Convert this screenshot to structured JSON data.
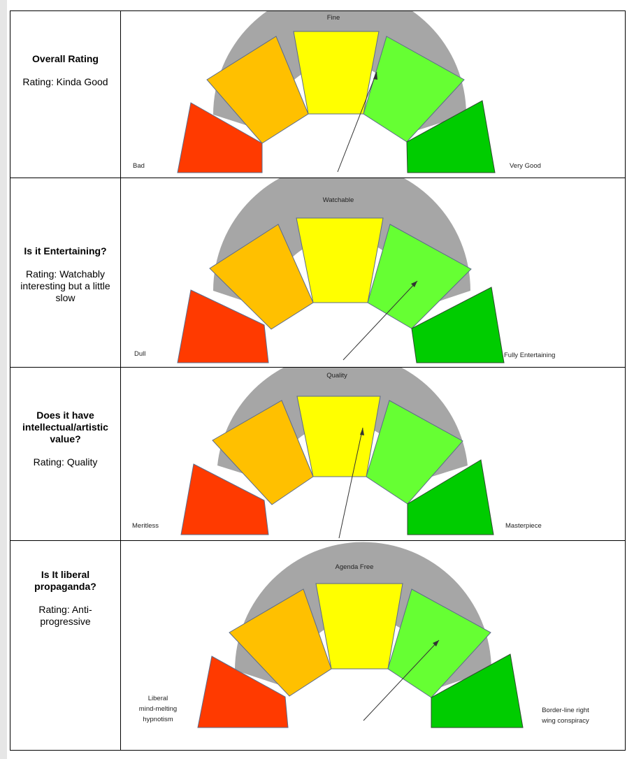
{
  "colors": {
    "red": "#ff3a00",
    "orange": "#ffc000",
    "yellow": "#ffff00",
    "light_green": "#66ff33",
    "dark_green": "#00cc00",
    "arc_gray": "#a6a6a6",
    "outline": "#5b6b8a"
  },
  "rows": [
    {
      "question": "Overall Rating",
      "rating": "Rating: Kinda Good",
      "gauge": {
        "top_label": "Fine",
        "left_label": [
          "Bad"
        ],
        "right_label": [
          "Very Good"
        ]
      }
    },
    {
      "question": "Is it Entertaining?",
      "rating": "Rating: Watchably interesting but a little slow",
      "gauge": {
        "top_label": "Watchable",
        "left_label": [
          "Dull"
        ],
        "right_label": [
          "Fully Entertaining"
        ]
      }
    },
    {
      "question": "Does it have intellectual/artistic value?",
      "rating": "Rating: Quality",
      "gauge": {
        "top_label": "Quality",
        "left_label": [
          "Meritless"
        ],
        "right_label": [
          "Masterpiece"
        ]
      }
    },
    {
      "question": "Is It liberal propaganda?",
      "rating": "Rating: Anti-progressive",
      "gauge": {
        "top_label": "Agenda Free",
        "left_label": [
          "Liberal",
          "mind-melting",
          "hypnotism"
        ],
        "right_label": [
          "Border-line right",
          "wing conspiracy"
        ]
      }
    }
  ]
}
